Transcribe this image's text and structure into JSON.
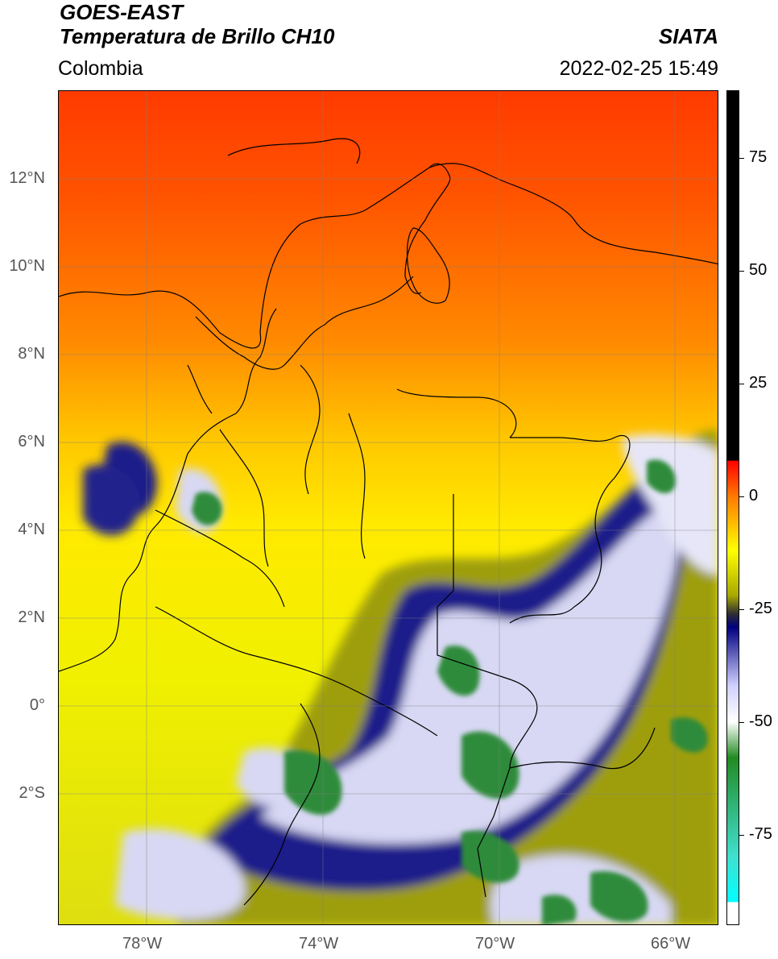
{
  "header": {
    "satellite": "GOES-EAST",
    "product": "Temperatura de Brillo CH10",
    "region": "Colombia",
    "agency": "SIATA",
    "timestamp": "2022-02-25 15:49"
  },
  "map": {
    "lon_range": [
      -80,
      -65
    ],
    "lat_range": [
      -5,
      14
    ],
    "x_ticks": [
      {
        "value": -78,
        "label": "78°W"
      },
      {
        "value": -74,
        "label": "74°W"
      },
      {
        "value": -70,
        "label": "70°W"
      },
      {
        "value": -66,
        "label": "66°W"
      }
    ],
    "y_ticks": [
      {
        "value": 12,
        "label": "12°N"
      },
      {
        "value": 10,
        "label": "10°N"
      },
      {
        "value": 8,
        "label": "8°N"
      },
      {
        "value": 6,
        "label": "6°N"
      },
      {
        "value": 4,
        "label": "4°N"
      },
      {
        "value": 2,
        "label": "2°N"
      },
      {
        "value": 0,
        "label": "0°"
      },
      {
        "value": -2,
        "label": "2°S"
      }
    ],
    "gridlines": true
  },
  "colorbar": {
    "range": [
      -95,
      90
    ],
    "ticks": [
      {
        "value": 75,
        "label": "75"
      },
      {
        "value": 50,
        "label": "50"
      },
      {
        "value": 25,
        "label": "25"
      },
      {
        "value": 0,
        "label": "0"
      },
      {
        "value": -25,
        "label": "-25"
      },
      {
        "value": -50,
        "label": "-50"
      },
      {
        "value": -75,
        "label": "-75"
      }
    ],
    "stops": [
      {
        "v": 90,
        "color": "#000000"
      },
      {
        "v": 8,
        "color": "#000000"
      },
      {
        "v": 7.9,
        "color": "#ff0000"
      },
      {
        "v": 0,
        "color": "#ff7a00"
      },
      {
        "v": -12,
        "color": "#ffff00"
      },
      {
        "v": -22,
        "color": "#a8a800"
      },
      {
        "v": -26,
        "color": "#303030"
      },
      {
        "v": -29,
        "color": "#000080"
      },
      {
        "v": -42,
        "color": "#d0d0ff"
      },
      {
        "v": -50,
        "color": "#ffffff"
      },
      {
        "v": -58,
        "color": "#228b22"
      },
      {
        "v": -80,
        "color": "#40e0d0"
      },
      {
        "v": -90,
        "color": "#00ffff"
      },
      {
        "v": -90.1,
        "color": "#ffffff"
      },
      {
        "v": -95,
        "color": "#ffffff"
      }
    ]
  }
}
